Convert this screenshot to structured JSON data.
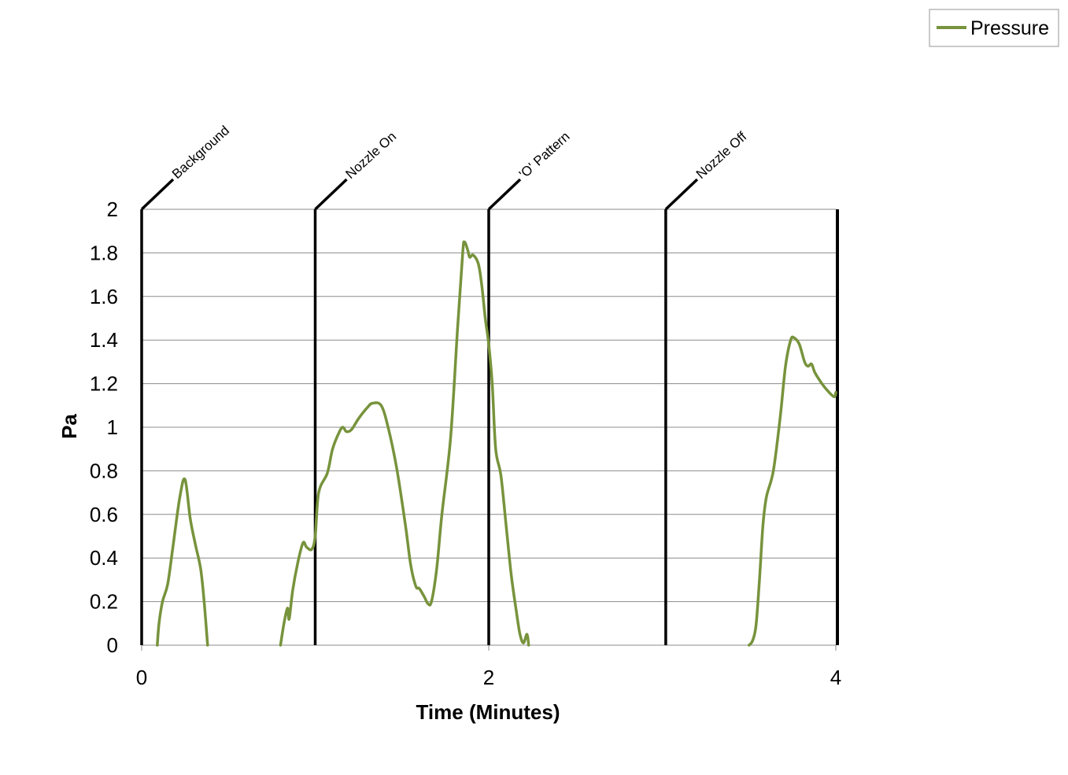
{
  "chart_data": {
    "type": "line",
    "xlabel": "Time (Minutes)",
    "ylabel": "Pa",
    "xlim": [
      0,
      4
    ],
    "ylim": [
      0,
      2
    ],
    "x_ticks": [
      "0",
      "2",
      "4"
    ],
    "x_tick_values": [
      0,
      2,
      4
    ],
    "y_ticks": [
      "0",
      "0.2",
      "0.4",
      "0.6",
      "0.8",
      "1",
      "1.2",
      "1.4",
      "1.6",
      "1.8",
      "2"
    ],
    "y_tick_values": [
      0,
      0.2,
      0.4,
      0.6,
      0.8,
      1,
      1.2,
      1.4,
      1.6,
      1.8,
      2
    ],
    "grid": true,
    "legend_position": "top-right",
    "color": "#77933C",
    "markers": [
      {
        "x": 0.0,
        "label": "Background"
      },
      {
        "x": 1.0,
        "label": "Nozzle On"
      },
      {
        "x": 2.0,
        "label": "'O' Pattern"
      },
      {
        "x": 3.02,
        "label": "Nozzle Off"
      }
    ],
    "series": [
      {
        "name": "Pressure",
        "segments": [
          [
            [
              0.09,
              0
            ],
            [
              0.1,
              0.1
            ],
            [
              0.12,
              0.2
            ],
            [
              0.15,
              0.28
            ],
            [
              0.18,
              0.45
            ],
            [
              0.22,
              0.68
            ],
            [
              0.25,
              0.76
            ],
            [
              0.28,
              0.58
            ],
            [
              0.31,
              0.46
            ],
            [
              0.34,
              0.35
            ],
            [
              0.36,
              0.2
            ],
            [
              0.38,
              0
            ]
          ],
          [
            [
              0.8,
              0
            ],
            [
              0.82,
              0.1
            ],
            [
              0.84,
              0.17
            ],
            [
              0.85,
              0.12
            ],
            [
              0.87,
              0.25
            ],
            [
              0.9,
              0.38
            ],
            [
              0.93,
              0.47
            ],
            [
              0.95,
              0.45
            ],
            [
              0.98,
              0.44
            ],
            [
              1.0,
              0.5
            ],
            [
              1.02,
              0.7
            ],
            [
              1.07,
              0.79
            ],
            [
              1.1,
              0.9
            ],
            [
              1.14,
              0.98
            ],
            [
              1.16,
              1.0
            ],
            [
              1.18,
              0.98
            ],
            [
              1.21,
              0.99
            ],
            [
              1.25,
              1.04
            ],
            [
              1.3,
              1.09
            ],
            [
              1.33,
              1.11
            ],
            [
              1.38,
              1.1
            ],
            [
              1.42,
              1.0
            ],
            [
              1.47,
              0.81
            ],
            [
              1.52,
              0.55
            ],
            [
              1.55,
              0.37
            ],
            [
              1.58,
              0.27
            ],
            [
              1.6,
              0.26
            ],
            [
              1.63,
              0.22
            ],
            [
              1.65,
              0.19
            ],
            [
              1.67,
              0.2
            ],
            [
              1.7,
              0.35
            ],
            [
              1.73,
              0.6
            ],
            [
              1.78,
              0.95
            ],
            [
              1.82,
              1.45
            ],
            [
              1.85,
              1.8
            ],
            [
              1.86,
              1.85
            ],
            [
              1.88,
              1.81
            ],
            [
              1.89,
              1.78
            ],
            [
              1.91,
              1.79
            ],
            [
              1.94,
              1.75
            ],
            [
              1.96,
              1.65
            ],
            [
              1.98,
              1.5
            ],
            [
              2.0,
              1.38
            ],
            [
              2.02,
              1.2
            ],
            [
              2.04,
              0.9
            ],
            [
              2.07,
              0.78
            ],
            [
              2.1,
              0.55
            ],
            [
              2.13,
              0.32
            ],
            [
              2.16,
              0.15
            ],
            [
              2.18,
              0.05
            ],
            [
              2.2,
              0.01
            ],
            [
              2.22,
              0.05
            ],
            [
              2.23,
              0
            ]
          ],
          [
            [
              3.5,
              0
            ],
            [
              3.52,
              0.02
            ],
            [
              3.54,
              0.09
            ],
            [
              3.56,
              0.3
            ],
            [
              3.58,
              0.55
            ],
            [
              3.6,
              0.68
            ],
            [
              3.64,
              0.8
            ],
            [
              3.68,
              1.05
            ],
            [
              3.71,
              1.28
            ],
            [
              3.74,
              1.4
            ],
            [
              3.76,
              1.41
            ],
            [
              3.79,
              1.38
            ],
            [
              3.82,
              1.3
            ],
            [
              3.84,
              1.28
            ],
            [
              3.86,
              1.29
            ],
            [
              3.88,
              1.25
            ],
            [
              3.92,
              1.2
            ],
            [
              3.95,
              1.17
            ],
            [
              3.99,
              1.14
            ],
            [
              4.0,
              1.16
            ]
          ]
        ]
      }
    ]
  }
}
